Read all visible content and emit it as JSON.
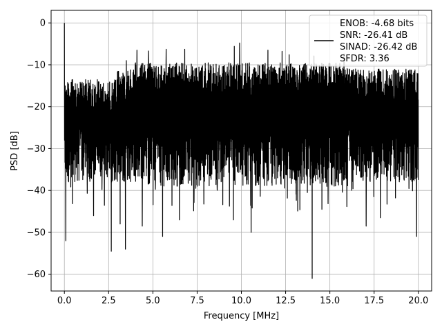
{
  "chart_data": {
    "type": "line",
    "title": "",
    "xlabel": "Frequency [MHz]",
    "ylabel": "PSD [dB]",
    "xlim": [
      -0.75,
      20.75
    ],
    "ylim": [
      -64,
      3
    ],
    "xticks": [
      0.0,
      2.5,
      5.0,
      7.5,
      10.0,
      12.5,
      15.0,
      17.5,
      20.0
    ],
    "xtick_labels": [
      "0.0",
      "2.5",
      "5.0",
      "7.5",
      "10.0",
      "12.5",
      "15.0",
      "17.5",
      "20.0"
    ],
    "yticks": [
      0,
      -10,
      -20,
      -30,
      -40,
      -50,
      -60
    ],
    "ytick_labels": [
      "0",
      "−10",
      "−20",
      "−30",
      "−40",
      "−50",
      "−60"
    ],
    "grid": true,
    "legend_position": "top-right",
    "series": [
      {
        "color": "#000000",
        "description": "noise-like PSD trace, peak 0 dB at 0 MHz, upper envelope about -10 dB, lower envelope about -40 dB",
        "peak": {
          "x": 0.0,
          "y": 0.0
        },
        "deep_dips": [
          {
            "x": 0.08,
            "y": -52
          },
          {
            "x": 1.65,
            "y": -46
          },
          {
            "x": 2.65,
            "y": -54.5
          },
          {
            "x": 3.15,
            "y": -48
          },
          {
            "x": 3.45,
            "y": -54
          },
          {
            "x": 4.4,
            "y": -48.5
          },
          {
            "x": 5.55,
            "y": -51
          },
          {
            "x": 6.5,
            "y": -47
          },
          {
            "x": 9.55,
            "y": -47
          },
          {
            "x": 10.55,
            "y": -50
          },
          {
            "x": 14.0,
            "y": -61
          },
          {
            "x": 14.55,
            "y": -44.5
          },
          {
            "x": 17.05,
            "y": -48.5
          },
          {
            "x": 17.85,
            "y": -46.5
          },
          {
            "x": 19.9,
            "y": -51
          }
        ],
        "high_peaks": [
          {
            "x": 3.5,
            "y": -9
          },
          {
            "x": 4.1,
            "y": -6.5
          },
          {
            "x": 4.75,
            "y": -6.7
          },
          {
            "x": 5.75,
            "y": -6.3
          },
          {
            "x": 6.8,
            "y": -6.3
          },
          {
            "x": 9.6,
            "y": -5.6
          },
          {
            "x": 9.9,
            "y": -4.8
          },
          {
            "x": 11.5,
            "y": -6.5
          },
          {
            "x": 12.3,
            "y": -6.8
          },
          {
            "x": 12.7,
            "y": -7.6
          },
          {
            "x": 14.1,
            "y": -7.9
          },
          {
            "x": 15.8,
            "y": -7.4
          }
        ],
        "x_range": [
          0,
          20
        ]
      }
    ]
  },
  "legend": {
    "lines": [
      "ENOB: -4.68 bits",
      "SNR: -26.41 dB",
      "SINAD: -26.42 dB",
      "SFDR: 3.36"
    ]
  }
}
